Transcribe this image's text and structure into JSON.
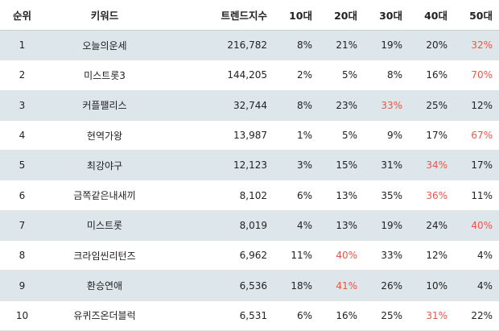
{
  "headers": [
    "순위",
    "키워드",
    "트렌드지수",
    "10대",
    "20대",
    "30대",
    "40대",
    "50대"
  ],
  "highlight_color": "#e8574a",
  "stripe_color": "#dde6eb",
  "rows": [
    {
      "rank": "1",
      "keyword": "오늘의운세",
      "trend": "216,782",
      "ages": [
        "8%",
        "21%",
        "19%",
        "20%",
        "32%"
      ],
      "highlight": [
        false,
        false,
        false,
        false,
        true
      ]
    },
    {
      "rank": "2",
      "keyword": "미스트롯3",
      "trend": "144,205",
      "ages": [
        "2%",
        "5%",
        "8%",
        "16%",
        "70%"
      ],
      "highlight": [
        false,
        false,
        false,
        false,
        true
      ]
    },
    {
      "rank": "3",
      "keyword": "커플팰리스",
      "trend": "32,744",
      "ages": [
        "8%",
        "23%",
        "33%",
        "25%",
        "12%"
      ],
      "highlight": [
        false,
        false,
        true,
        false,
        false
      ]
    },
    {
      "rank": "4",
      "keyword": "현역가왕",
      "trend": "13,987",
      "ages": [
        "1%",
        "5%",
        "9%",
        "17%",
        "67%"
      ],
      "highlight": [
        false,
        false,
        false,
        false,
        true
      ]
    },
    {
      "rank": "5",
      "keyword": "최강야구",
      "trend": "12,123",
      "ages": [
        "3%",
        "15%",
        "31%",
        "34%",
        "17%"
      ],
      "highlight": [
        false,
        false,
        false,
        true,
        false
      ]
    },
    {
      "rank": "6",
      "keyword": "금쪽같은내새끼",
      "trend": "8,102",
      "ages": [
        "6%",
        "13%",
        "35%",
        "36%",
        "11%"
      ],
      "highlight": [
        false,
        false,
        false,
        true,
        false
      ]
    },
    {
      "rank": "7",
      "keyword": "미스트롯",
      "trend": "8,019",
      "ages": [
        "4%",
        "13%",
        "19%",
        "24%",
        "40%"
      ],
      "highlight": [
        false,
        false,
        false,
        false,
        true
      ]
    },
    {
      "rank": "8",
      "keyword": "크라임씬리턴즈",
      "trend": "6,962",
      "ages": [
        "11%",
        "40%",
        "33%",
        "12%",
        "4%"
      ],
      "highlight": [
        false,
        true,
        false,
        false,
        false
      ]
    },
    {
      "rank": "9",
      "keyword": "환승연애",
      "trend": "6,536",
      "ages": [
        "18%",
        "41%",
        "26%",
        "10%",
        "4%"
      ],
      "highlight": [
        false,
        true,
        false,
        false,
        false
      ]
    },
    {
      "rank": "10",
      "keyword": "유퀴즈온더블럭",
      "trend": "6,531",
      "ages": [
        "6%",
        "16%",
        "25%",
        "31%",
        "22%"
      ],
      "highlight": [
        false,
        false,
        false,
        true,
        false
      ]
    }
  ]
}
